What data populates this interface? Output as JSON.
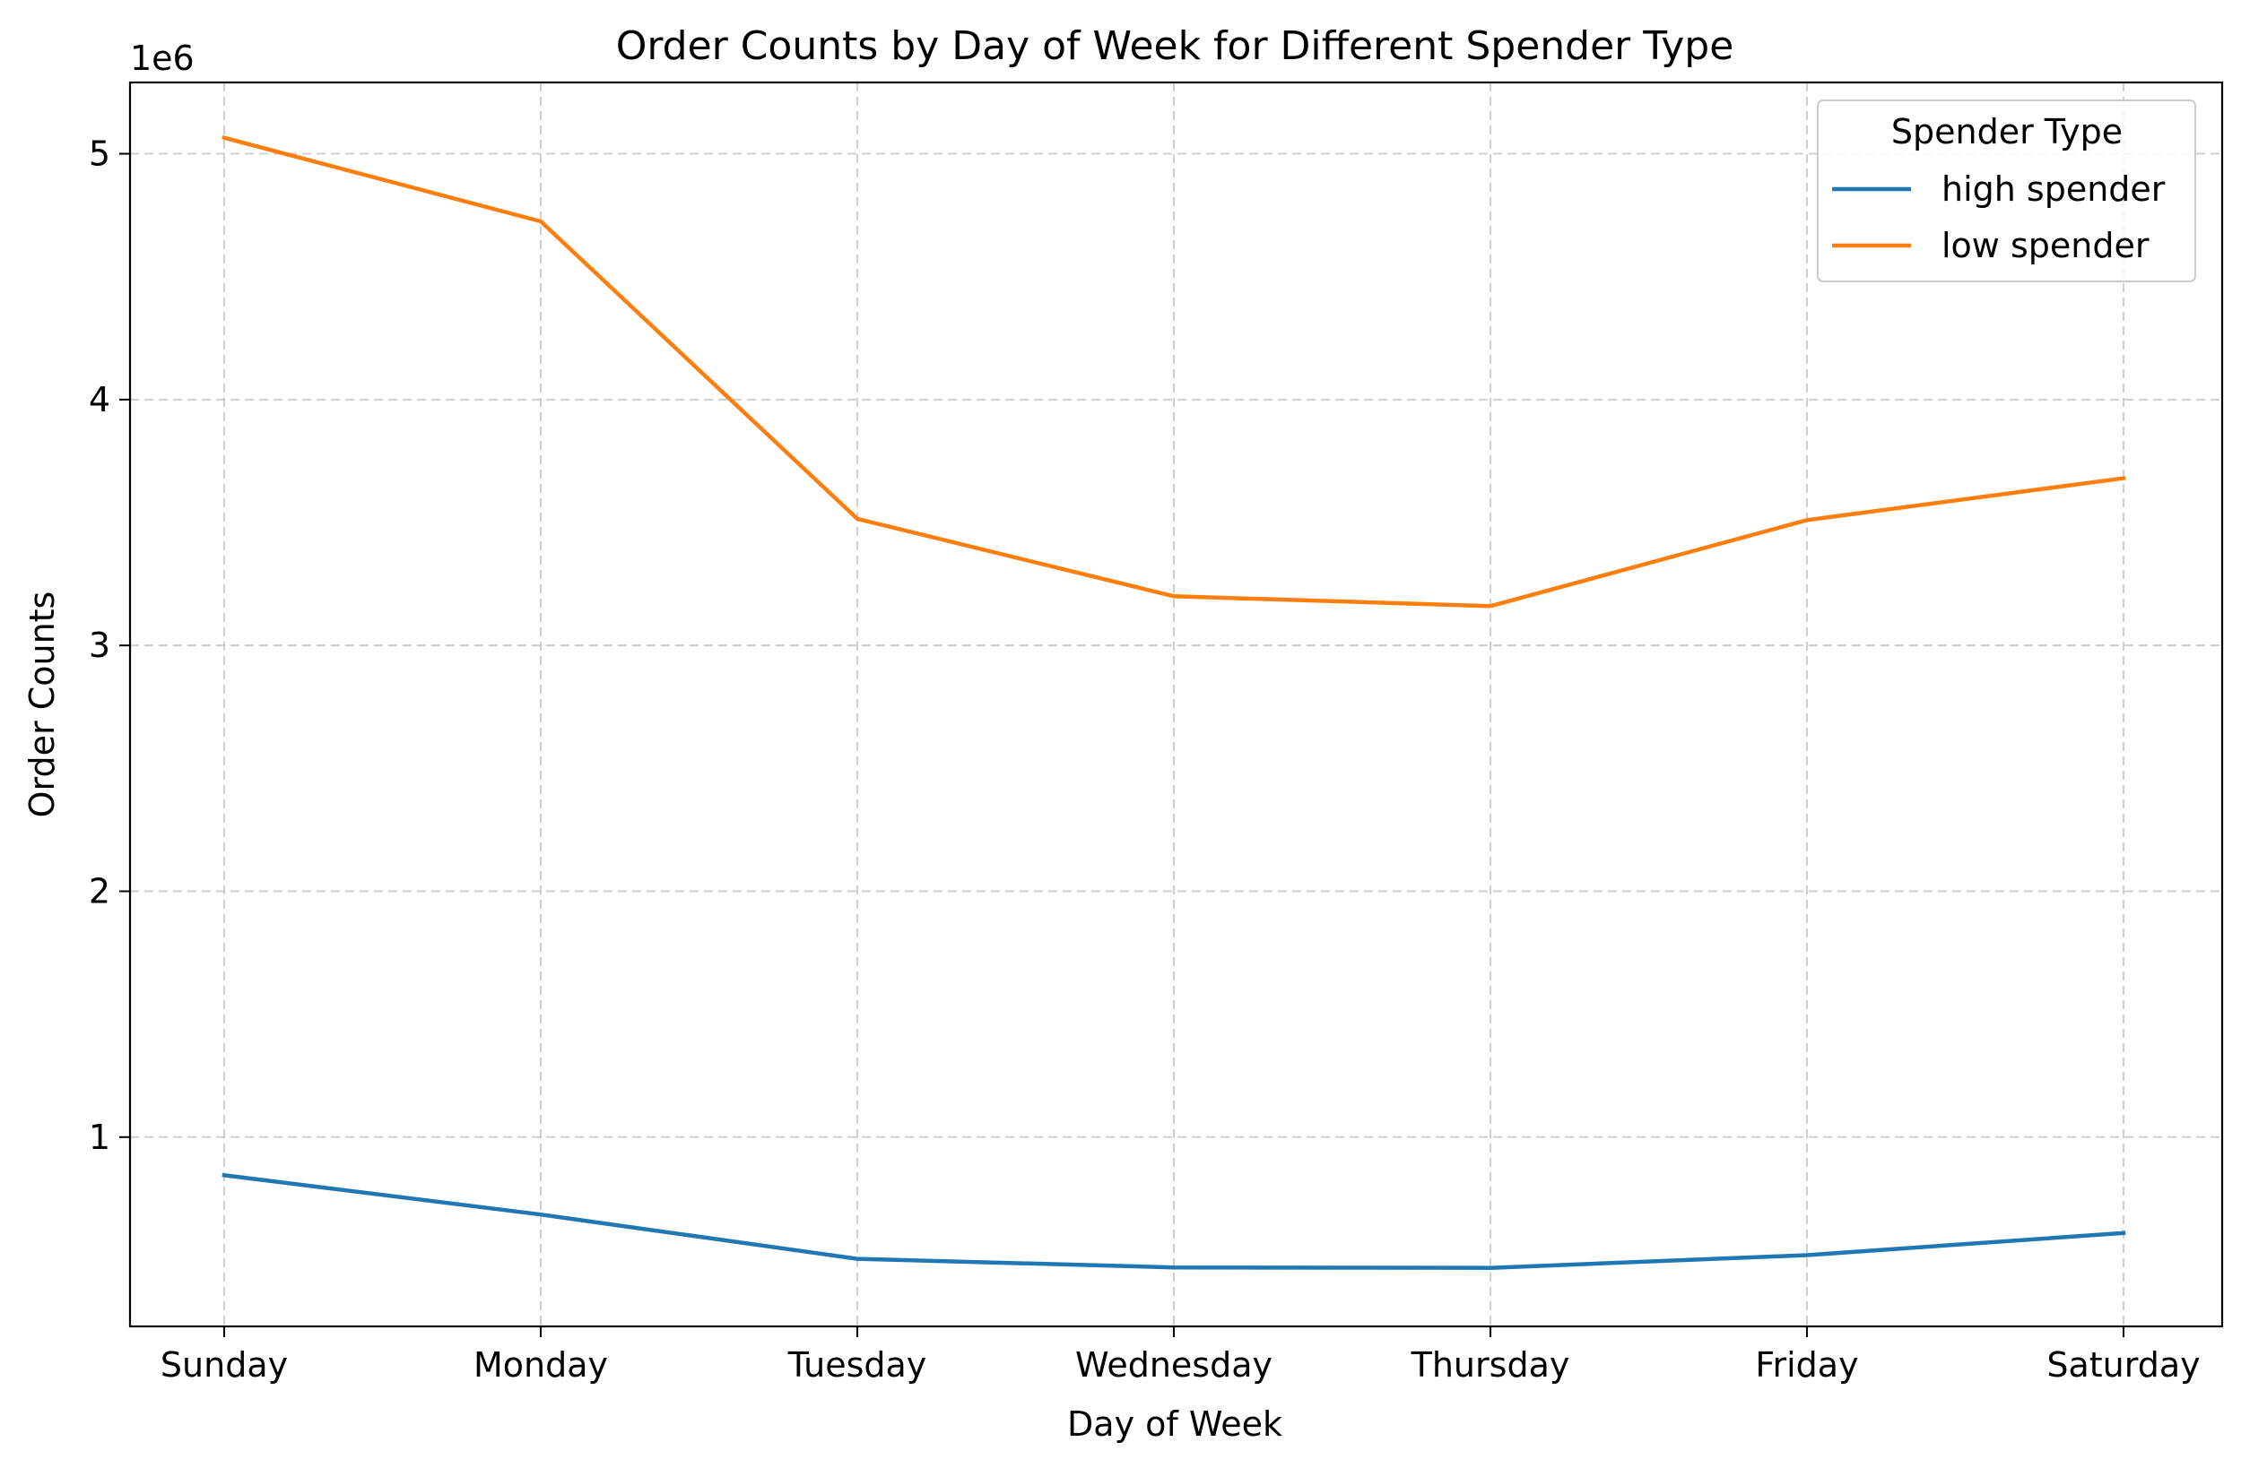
{
  "chart_data": {
    "type": "line",
    "title": "Order Counts by Day of Week for Different Spender Type",
    "xlabel": "Day of Week",
    "ylabel": "Order Counts",
    "y_offset_label": "1e6",
    "y_scale": 1000000,
    "categories": [
      "Sunday",
      "Monday",
      "Tuesday",
      "Wednesday",
      "Thursday",
      "Friday",
      "Saturday"
    ],
    "ylim": [
      230000,
      5290000
    ],
    "yticks": [
      1000000,
      2000000,
      3000000,
      4000000,
      5000000
    ],
    "ytick_labels": [
      "1",
      "2",
      "3",
      "4",
      "5"
    ],
    "grid": true,
    "legend": {
      "title": "Spender Type",
      "placement": "upper right"
    },
    "series": [
      {
        "name": "high spender",
        "color": "#1f77b4",
        "values": [
          845000,
          685000,
          505000,
          470000,
          468000,
          520000,
          610000
        ]
      },
      {
        "name": "low spender",
        "color": "#ff7f0e",
        "values": [
          5065000,
          4725000,
          3515000,
          3200000,
          3160000,
          3510000,
          3680000
        ]
      }
    ]
  }
}
